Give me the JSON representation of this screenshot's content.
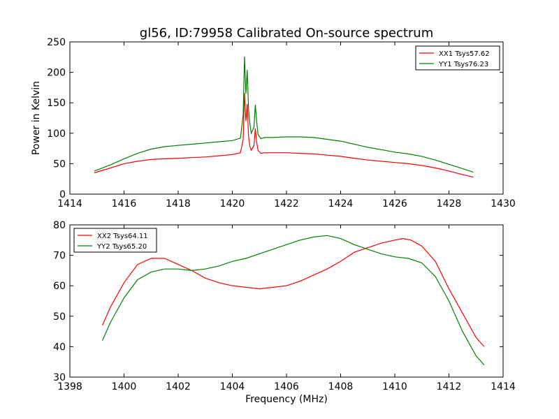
{
  "figure": {
    "title": "gl56, ID:79958 Calibrated On-source spectrum"
  },
  "chart_data": [
    {
      "type": "line",
      "title": "gl56, ID:79958 Calibrated On-source spectrum",
      "xlabel": "",
      "ylabel": "Power in Kelvin",
      "xlim": [
        1414,
        1430
      ],
      "ylim": [
        0,
        250
      ],
      "xticks": [
        1414,
        1416,
        1418,
        1420,
        1422,
        1424,
        1426,
        1428,
        1430
      ],
      "yticks": [
        0,
        50,
        100,
        150,
        200,
        250
      ],
      "grid": false,
      "legend_position": "top-right",
      "series": [
        {
          "name": "XX1 Tsys57.62",
          "color": "#ff0000",
          "x": [
            1414.9,
            1415.5,
            1416.0,
            1416.5,
            1417.0,
            1417.5,
            1418.0,
            1418.5,
            1419.0,
            1419.5,
            1420.0,
            1420.3,
            1420.4,
            1420.45,
            1420.5,
            1420.55,
            1420.6,
            1420.65,
            1420.7,
            1420.8,
            1420.85,
            1420.9,
            1420.95,
            1421.05,
            1421.2,
            1421.5,
            1422.0,
            1422.5,
            1423.0,
            1423.5,
            1424.0,
            1424.5,
            1425.0,
            1425.5,
            1426.0,
            1426.5,
            1427.0,
            1427.5,
            1428.0,
            1428.5,
            1428.9
          ],
          "y": [
            35,
            43,
            50,
            54,
            57,
            58,
            59,
            60,
            61,
            63,
            65,
            68,
            90,
            166,
            120,
            148,
            95,
            78,
            72,
            80,
            108,
            85,
            72,
            67,
            68,
            68,
            68,
            67,
            66,
            64,
            62,
            59,
            56,
            54,
            52,
            50,
            47,
            43,
            38,
            32,
            28
          ]
        },
        {
          "name": "YY1 Tsys76.23",
          "color": "#008000",
          "x": [
            1414.9,
            1415.5,
            1416.0,
            1416.5,
            1417.0,
            1417.5,
            1418.0,
            1418.5,
            1419.0,
            1419.5,
            1420.0,
            1420.3,
            1420.4,
            1420.45,
            1420.5,
            1420.55,
            1420.6,
            1420.65,
            1420.7,
            1420.8,
            1420.85,
            1420.9,
            1420.95,
            1421.05,
            1421.2,
            1421.5,
            1422.0,
            1422.5,
            1423.0,
            1423.5,
            1424.0,
            1424.5,
            1425.0,
            1425.5,
            1426.0,
            1426.5,
            1427.0,
            1427.5,
            1428.0,
            1428.5,
            1428.9
          ],
          "y": [
            38,
            48,
            58,
            67,
            74,
            78,
            80,
            82,
            84,
            86,
            88,
            92,
            130,
            226,
            165,
            204,
            140,
            115,
            100,
            110,
            147,
            118,
            98,
            91,
            93,
            93,
            94,
            94,
            93,
            90,
            87,
            82,
            77,
            73,
            69,
            66,
            62,
            56,
            49,
            42,
            36
          ]
        }
      ]
    },
    {
      "type": "line",
      "title": "",
      "xlabel": "Frequency (MHz)",
      "ylabel": "",
      "xlim": [
        1398,
        1414
      ],
      "ylim": [
        30,
        80
      ],
      "xticks": [
        1398,
        1400,
        1402,
        1404,
        1406,
        1408,
        1410,
        1412,
        1414
      ],
      "yticks": [
        30,
        40,
        50,
        60,
        70,
        80
      ],
      "grid": false,
      "legend_position": "top-left",
      "series": [
        {
          "name": "XX2 Tsys64.11",
          "color": "#ff0000",
          "x": [
            1399.2,
            1399.5,
            1400.0,
            1400.5,
            1401.0,
            1401.5,
            1402.0,
            1402.5,
            1403.0,
            1403.5,
            1404.0,
            1404.5,
            1405.0,
            1405.5,
            1406.0,
            1406.5,
            1407.0,
            1407.5,
            1408.0,
            1408.5,
            1409.0,
            1409.5,
            1410.0,
            1410.3,
            1410.6,
            1411.0,
            1411.5,
            1412.0,
            1412.5,
            1413.0,
            1413.3
          ],
          "y": [
            47,
            53,
            61,
            67,
            69,
            69,
            67,
            65,
            62.5,
            61,
            60,
            59.5,
            59,
            59.5,
            60,
            61.5,
            63.5,
            65.5,
            68,
            71,
            72.5,
            74,
            75,
            75.5,
            75,
            73,
            68,
            59,
            51,
            43,
            40
          ]
        },
        {
          "name": "YY2 Tsys65.20",
          "color": "#008000",
          "x": [
            1399.2,
            1399.5,
            1400.0,
            1400.5,
            1401.0,
            1401.5,
            1402.0,
            1402.5,
            1403.0,
            1403.5,
            1404.0,
            1404.5,
            1405.0,
            1405.5,
            1406.0,
            1406.5,
            1407.0,
            1407.5,
            1408.0,
            1408.5,
            1409.0,
            1409.5,
            1410.0,
            1410.5,
            1411.0,
            1411.5,
            1412.0,
            1412.5,
            1413.0,
            1413.3
          ],
          "y": [
            42,
            48,
            56,
            62,
            64.5,
            65.5,
            65.5,
            65,
            65.5,
            66.5,
            68,
            69,
            70.5,
            72,
            73.5,
            75,
            76,
            76.5,
            75.5,
            73.5,
            72,
            70.5,
            69.5,
            69,
            67.5,
            63,
            55,
            45,
            37,
            34
          ]
        }
      ]
    }
  ]
}
